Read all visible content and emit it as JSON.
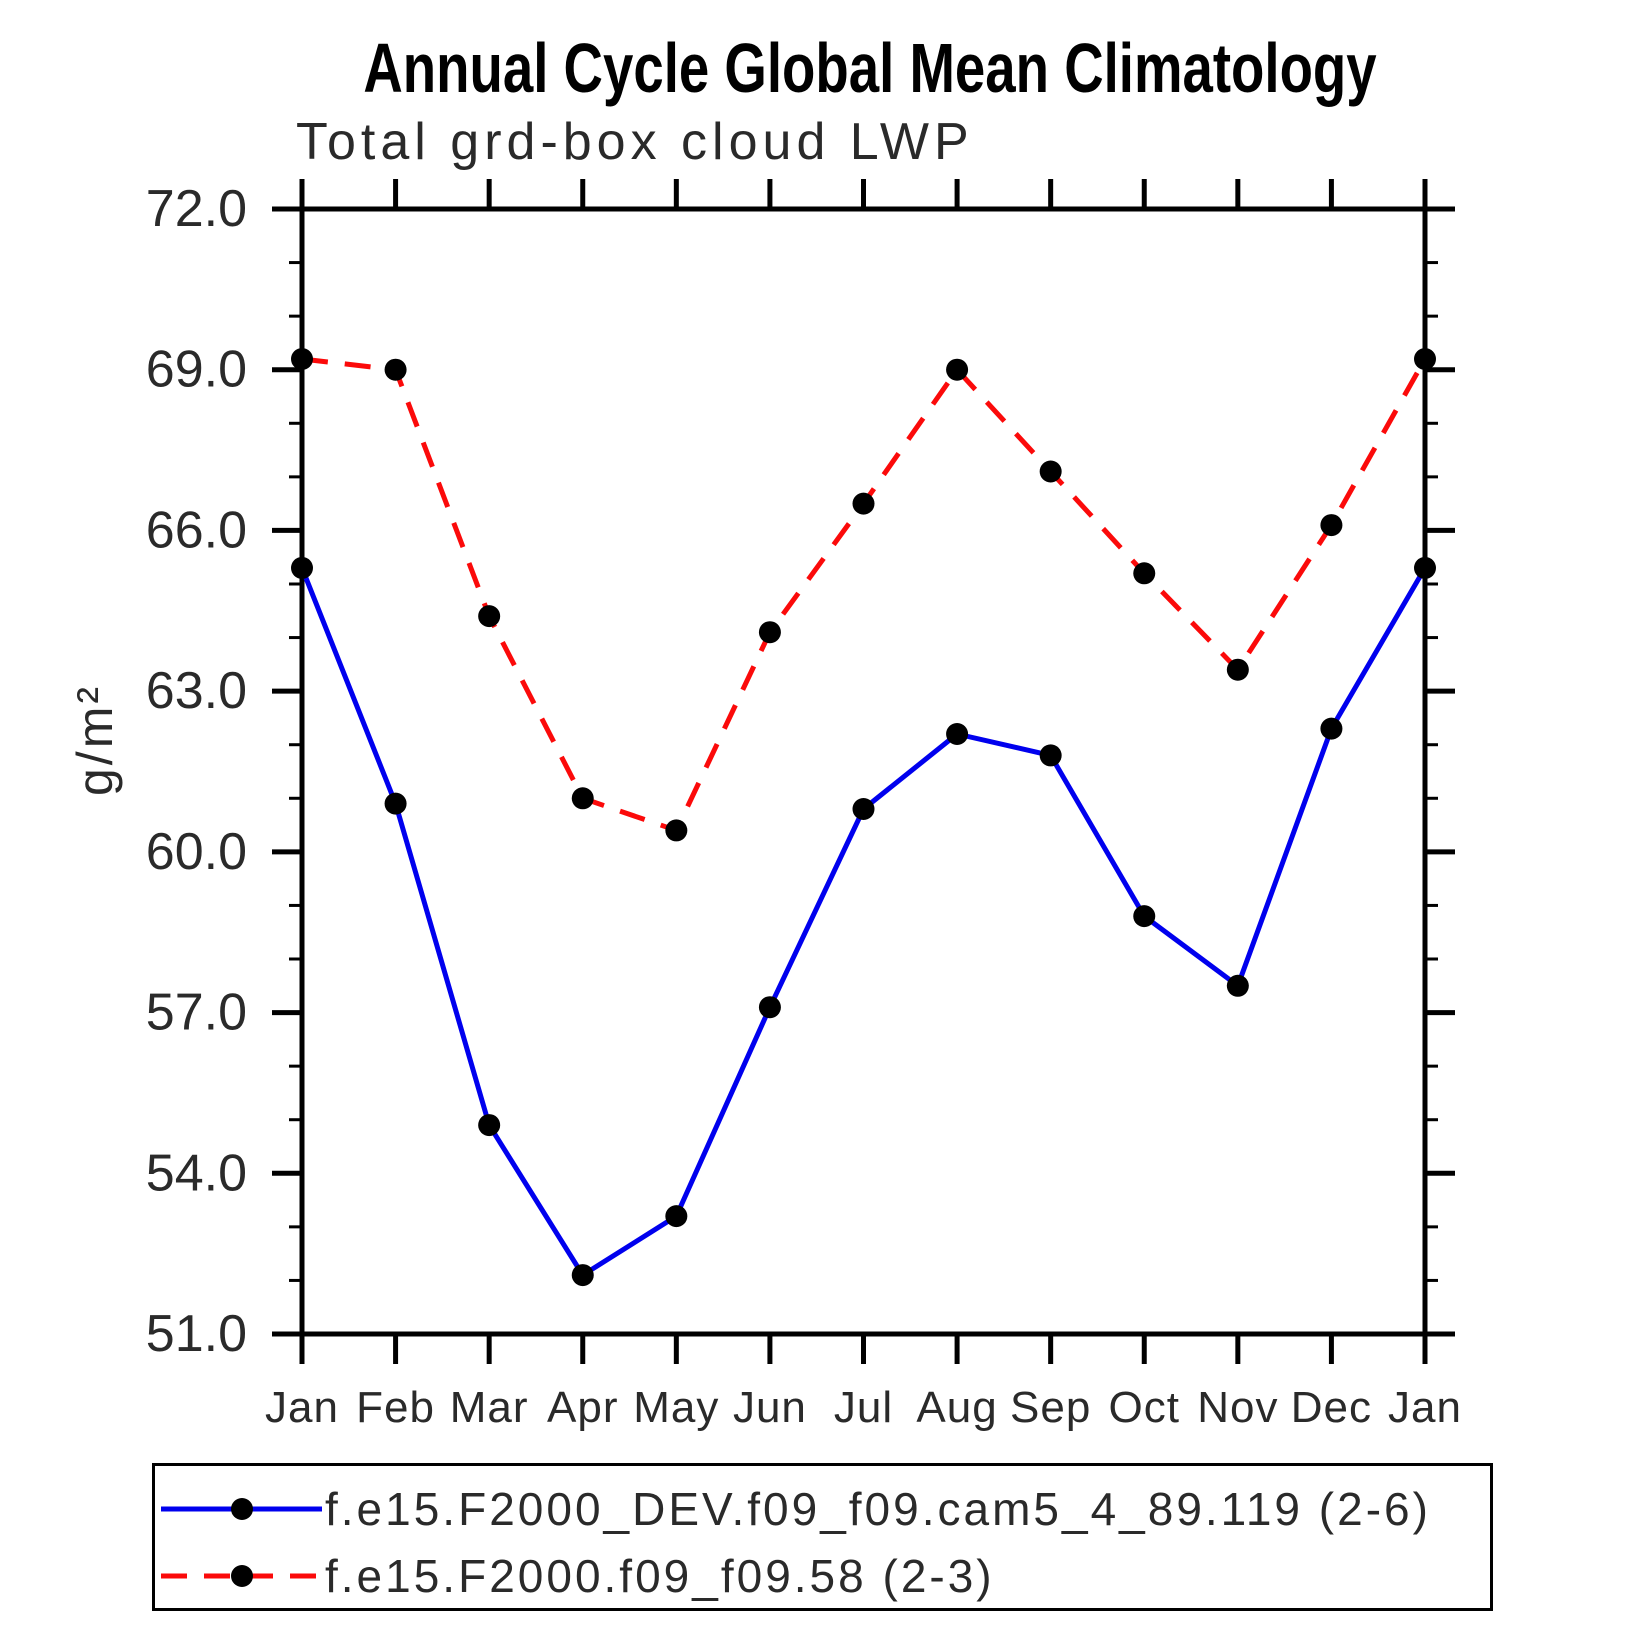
{
  "page": {
    "background": "#ffffff"
  },
  "chart_data": {
    "type": "line",
    "title": "Annual Cycle Global Mean Climatology",
    "subtitle": "Total grd-box cloud LWP",
    "ylabel": "g/m²",
    "xlabel": "",
    "categories": [
      "Jan",
      "Feb",
      "Mar",
      "Apr",
      "May",
      "Jun",
      "Jul",
      "Aug",
      "Sep",
      "Oct",
      "Nov",
      "Dec",
      "Jan"
    ],
    "ylim": [
      51.0,
      72.0
    ],
    "ytick_major_step": 3.0,
    "ytick_minor_step": 1.0,
    "ytick_labels": [
      "51.0",
      "54.0",
      "57.0",
      "60.0",
      "63.0",
      "66.0",
      "69.0",
      "72.0"
    ],
    "grid": false,
    "legend_position": "bottom",
    "axis_color": "#000000",
    "marker_color": "#000000",
    "series": [
      {
        "name": "f.e15.F2000_DEV.f09_f09.cam5_4_89.119 (2-6)",
        "color": "#0000ee",
        "line_style": "solid",
        "marker": "filled-circle",
        "values": [
          65.3,
          60.9,
          54.9,
          52.1,
          53.2,
          57.1,
          60.8,
          62.2,
          61.8,
          58.8,
          57.5,
          62.3,
          65.3
        ]
      },
      {
        "name": "f.e15.F2000.f09_f09.58 (2-3)",
        "color": "#fb0a0a",
        "line_style": "dashed",
        "marker": "filled-circle",
        "values": [
          69.2,
          69.0,
          64.4,
          61.0,
          60.4,
          64.1,
          66.5,
          69.0,
          67.1,
          65.2,
          63.4,
          66.1,
          69.2
        ]
      }
    ]
  }
}
